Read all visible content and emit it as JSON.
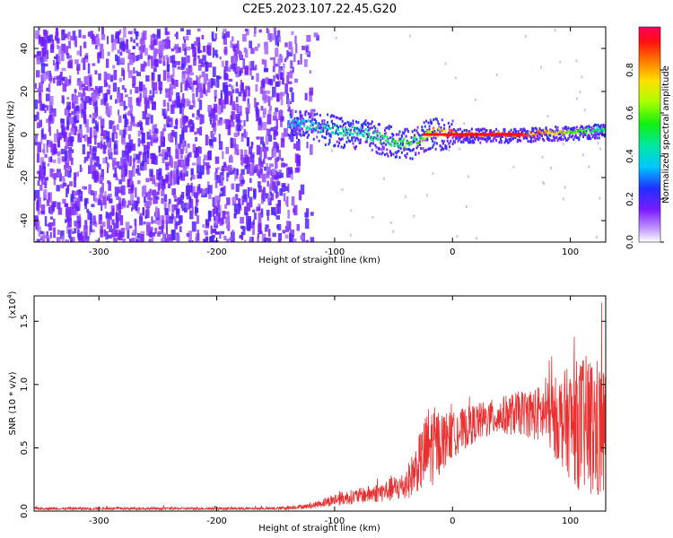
{
  "title": "C2E5.2023.107.22.45.G20",
  "colors": {
    "spectrogram_noise": "#7a1bff",
    "snr_line": "#e83030",
    "axis": "#000000"
  },
  "chart_data": [
    {
      "type": "heatmap",
      "title": "C2E5.2023.107.22.45.G20",
      "xlabel": "Height of straight line (km)",
      "ylabel": "Frequency (Hz)",
      "xlim": [
        -355,
        130
      ],
      "ylim": [
        -50,
        50
      ],
      "x_ticks": [
        -300,
        -200,
        -100,
        0,
        100
      ],
      "y_ticks": [
        -40,
        -20,
        0,
        20,
        40
      ],
      "x_tick_labels": [
        "-300",
        "-200",
        "-100",
        "0",
        "100"
      ],
      "y_tick_labels": [
        "-40",
        "-20",
        "0",
        "20",
        "40"
      ],
      "colorbar": {
        "label": "Normalized spectral amplitude",
        "range": [
          0,
          1
        ],
        "ticks": [
          0.0,
          0.2,
          0.4,
          0.6,
          0.8
        ],
        "tick_labels": [
          "0.0",
          "0.2",
          "0.4",
          "0.6",
          "0.8"
        ],
        "colormap": "rainbow"
      },
      "noise_region_x": [
        -355,
        -120
      ],
      "signal_track": {
        "x": [
          -140,
          -120,
          -100,
          -80,
          -60,
          -40,
          -30,
          -20,
          0,
          20,
          40,
          60,
          80,
          100,
          120,
          130
        ],
        "freq": [
          6,
          4,
          2,
          1,
          -2,
          -4,
          -3,
          1,
          0,
          0,
          0,
          0,
          1,
          1,
          2,
          2
        ],
        "amplitude": [
          0.4,
          0.45,
          0.5,
          0.5,
          0.55,
          0.6,
          0.6,
          0.8,
          1.0,
          1.0,
          1.0,
          1.0,
          0.85,
          0.7,
          0.55,
          0.5
        ]
      }
    },
    {
      "type": "line",
      "xlabel": "Height of straight line (km)",
      "ylabel": "SNR (10 * v/v)",
      "y_scale_label": "(x10",
      "y_scale_exponent": "4",
      "xlim": [
        -355,
        130
      ],
      "ylim": [
        0,
        1.7
      ],
      "x_ticks": [
        -300,
        -200,
        -100,
        0,
        100
      ],
      "y_ticks": [
        0.0,
        0.5,
        1.0,
        1.5
      ],
      "x_tick_labels": [
        "-300",
        "-200",
        "-100",
        "0",
        "100"
      ],
      "y_tick_labels": [
        "0.0",
        "0.5",
        "1.0",
        "1.5"
      ],
      "envelope": {
        "x": [
          -355,
          -150,
          -120,
          -100,
          -80,
          -60,
          -40,
          -30,
          -20,
          -10,
          0,
          20,
          40,
          60,
          80,
          100,
          110,
          120,
          130
        ],
        "mean": [
          0.02,
          0.02,
          0.04,
          0.09,
          0.12,
          0.15,
          0.2,
          0.35,
          0.5,
          0.55,
          0.6,
          0.7,
          0.75,
          0.78,
          0.76,
          0.7,
          0.68,
          0.65,
          0.6
        ],
        "spread": [
          0.01,
          0.01,
          0.02,
          0.05,
          0.06,
          0.08,
          0.12,
          0.2,
          0.35,
          0.25,
          0.18,
          0.15,
          0.15,
          0.18,
          0.25,
          0.45,
          0.55,
          0.6,
          0.55
        ]
      }
    }
  ]
}
